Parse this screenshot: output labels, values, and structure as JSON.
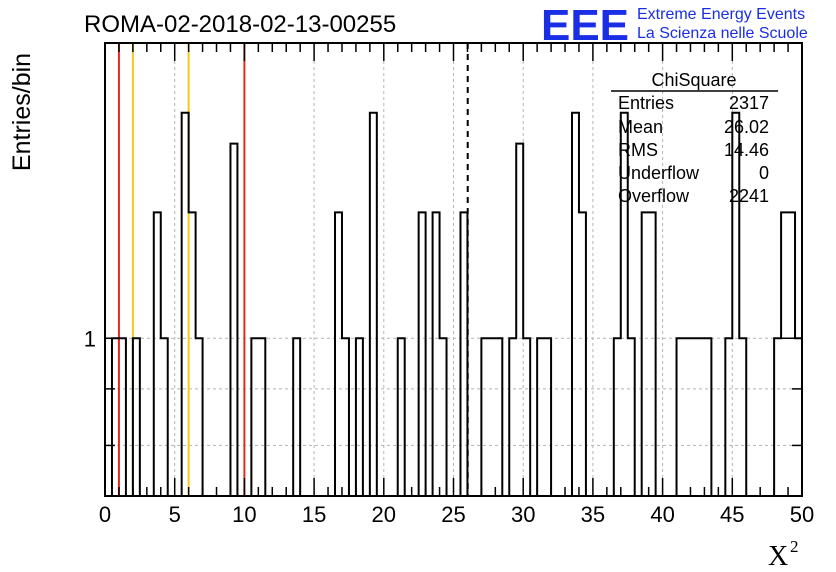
{
  "header": {
    "run_title": "ROMA-02-2018-02-13-00255",
    "logo_letters": "EEE",
    "logo_line1": "Extreme Energy Events",
    "logo_line2": "La Scienza nelle Scuole"
  },
  "stats": {
    "title": "ChiSquare",
    "rows": [
      {
        "label": "Entries",
        "value": "2317"
      },
      {
        "label": "Mean",
        "value": "26.02"
      },
      {
        "label": "RMS",
        "value": "14.46"
      },
      {
        "label": "Underflow",
        "value": "0"
      },
      {
        "label": "Overflow",
        "value": "2241"
      }
    ]
  },
  "colors": {
    "red_line": "#e8281e",
    "yellow_line": "#f2c81e",
    "logo_blue": "#1a2ee6",
    "histogram": "#000000"
  },
  "chart_data": {
    "type": "histogram",
    "xlabel": "X",
    "xlabel_superscript": "2",
    "ylabel": "Entries/bin",
    "xlim": [
      0,
      50
    ],
    "ylim": [
      0.72,
      1.85
    ],
    "y_scale": "log",
    "bin_width": 0.5,
    "grid": true,
    "x_ticks": [
      0,
      5,
      10,
      15,
      20,
      25,
      30,
      35,
      40,
      45,
      50
    ],
    "y_tick_labels": [
      {
        "value": 1,
        "label": "1"
      }
    ],
    "vertical_lines": [
      {
        "x": 1,
        "color": "red",
        "style": "solid"
      },
      {
        "x": 2,
        "color": "yellow",
        "style": "solid"
      },
      {
        "x": 6,
        "color": "yellow",
        "style": "solid"
      },
      {
        "x": 10,
        "color": "red",
        "style": "solid"
      },
      {
        "x": 26.02,
        "color": "black",
        "style": "dashed"
      }
    ],
    "bins": [
      {
        "x": 0.5,
        "value": 1
      },
      {
        "x": 1.0,
        "value": 1
      },
      {
        "x": 2.0,
        "value": 1
      },
      {
        "x": 3.5,
        "value": 1.3
      },
      {
        "x": 4.0,
        "value": 1
      },
      {
        "x": 5.5,
        "value": 1.6
      },
      {
        "x": 6.0,
        "value": 1.3
      },
      {
        "x": 6.5,
        "value": 1
      },
      {
        "x": 9.0,
        "value": 1.5
      },
      {
        "x": 10.5,
        "value": 1
      },
      {
        "x": 11.0,
        "value": 1
      },
      {
        "x": 13.5,
        "value": 1
      },
      {
        "x": 16.5,
        "value": 1.3
      },
      {
        "x": 17.0,
        "value": 1
      },
      {
        "x": 18.0,
        "value": 1
      },
      {
        "x": 19.0,
        "value": 1.6
      },
      {
        "x": 21.0,
        "value": 1
      },
      {
        "x": 22.5,
        "value": 1.3
      },
      {
        "x": 23.5,
        "value": 1.3
      },
      {
        "x": 24.0,
        "value": 1
      },
      {
        "x": 25.5,
        "value": 1.3
      },
      {
        "x": 27.0,
        "value": 1
      },
      {
        "x": 27.5,
        "value": 1
      },
      {
        "x": 28.0,
        "value": 1
      },
      {
        "x": 29.0,
        "value": 1
      },
      {
        "x": 29.5,
        "value": 1.5
      },
      {
        "x": 30.0,
        "value": 1
      },
      {
        "x": 31.0,
        "value": 1
      },
      {
        "x": 31.5,
        "value": 1
      },
      {
        "x": 33.5,
        "value": 1.6
      },
      {
        "x": 34.0,
        "value": 1.3
      },
      {
        "x": 36.5,
        "value": 1
      },
      {
        "x": 37.0,
        "value": 1.6
      },
      {
        "x": 37.5,
        "value": 1
      },
      {
        "x": 38.5,
        "value": 1.3
      },
      {
        "x": 39.0,
        "value": 1.3
      },
      {
        "x": 41.0,
        "value": 1
      },
      {
        "x": 41.5,
        "value": 1
      },
      {
        "x": 42.0,
        "value": 1
      },
      {
        "x": 42.5,
        "value": 1
      },
      {
        "x": 43.0,
        "value": 1
      },
      {
        "x": 44.5,
        "value": 1
      },
      {
        "x": 45.0,
        "value": 1.6
      },
      {
        "x": 45.5,
        "value": 1
      },
      {
        "x": 48.0,
        "value": 1
      },
      {
        "x": 48.5,
        "value": 1.3
      },
      {
        "x": 49.0,
        "value": 1.3
      },
      {
        "x": 49.5,
        "value": 1
      }
    ]
  }
}
